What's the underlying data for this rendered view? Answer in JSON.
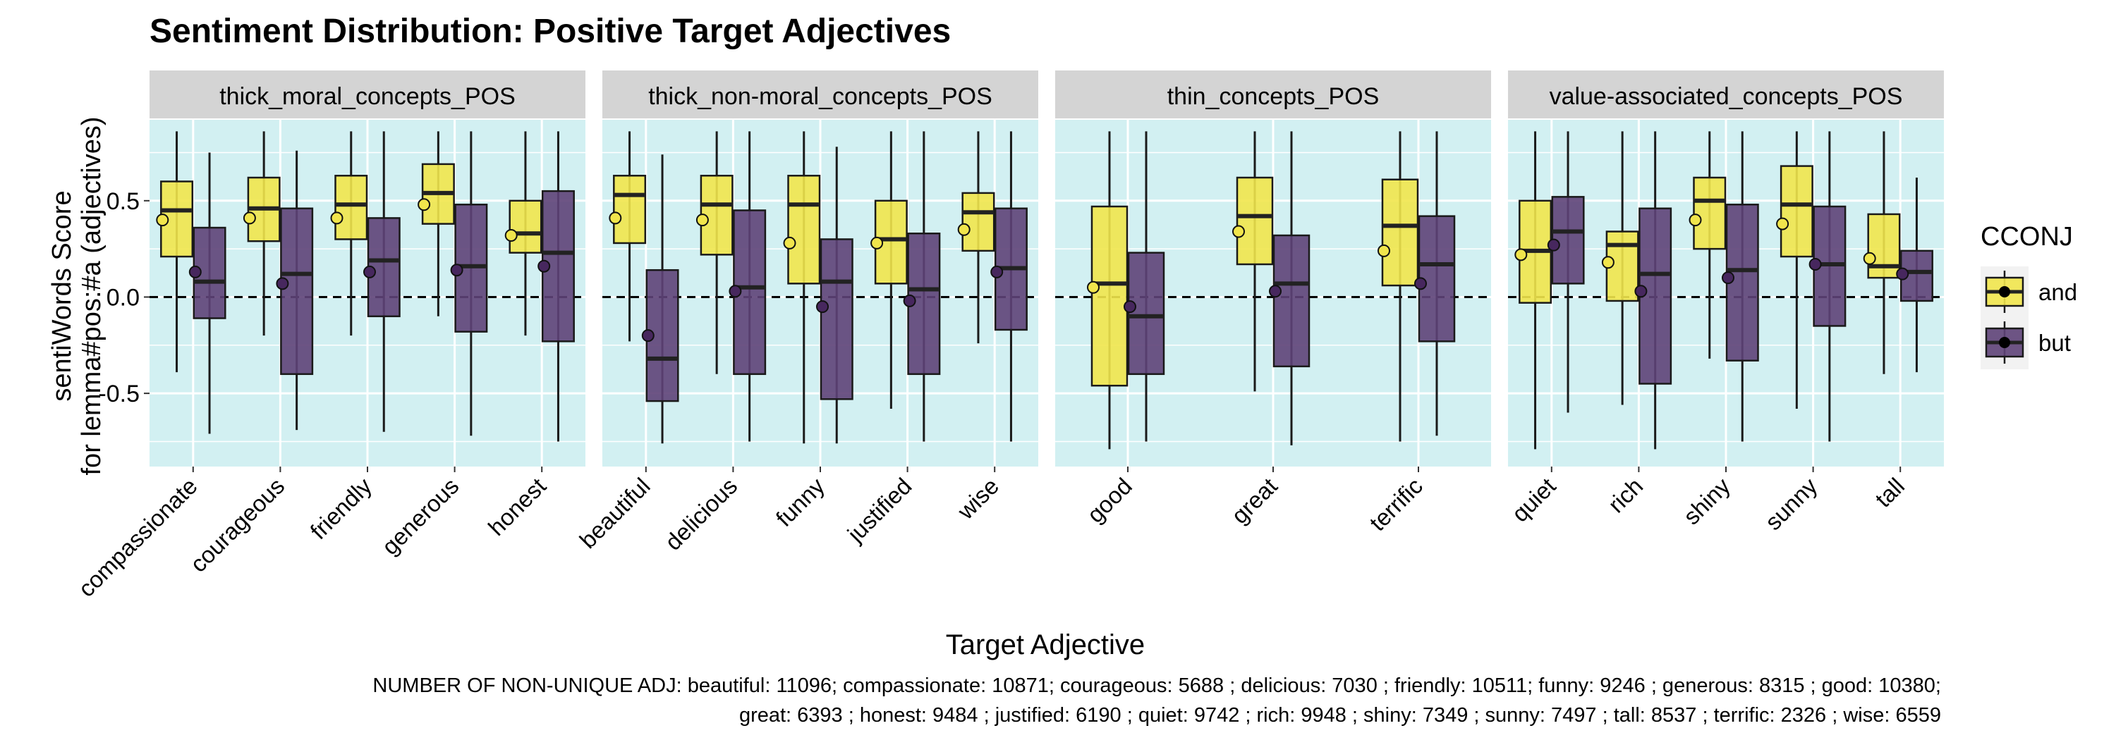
{
  "chart_data": {
    "type": "boxplot",
    "title": "Sentiment Distribution: Positive Target Adjectives",
    "xlabel": "Target Adjective",
    "ylabel_line1": "sentiWords Score",
    "ylabel_line2": "for lemma#pos:#a (adjectives)",
    "ylim": [
      -0.88,
      0.92
    ],
    "y_ticks": [
      -0.5,
      0.0,
      0.5
    ],
    "y_tick_labels": [
      "-0.5",
      "0.0",
      "0.5"
    ],
    "reference_line": 0,
    "legend": {
      "title": "CCONJ",
      "placement": "right",
      "entries": [
        {
          "name": "and",
          "color": "#f1e54c"
        },
        {
          "name": "but",
          "color": "#5e4378"
        }
      ]
    },
    "colors": {
      "panel_bg": "#d2f0f2",
      "strip_bg": "#d4d4d4",
      "and_fill": "#f1e54c",
      "but_fill": "#5e4378",
      "and_point": "#f1e54c",
      "but_point": "#47275e"
    },
    "panels": [
      {
        "strip": "thick_moral_concepts_POS",
        "categories": [
          {
            "label": "compassionate",
            "and": {
              "min": -0.39,
              "q1": 0.21,
              "median": 0.45,
              "q3": 0.6,
              "max": 0.86,
              "mean": 0.4
            },
            "but": {
              "min": -0.71,
              "q1": -0.11,
              "median": 0.08,
              "q3": 0.36,
              "max": 0.75,
              "mean": 0.13
            }
          },
          {
            "label": "courageous",
            "and": {
              "min": -0.2,
              "q1": 0.29,
              "median": 0.46,
              "q3": 0.62,
              "max": 0.86,
              "mean": 0.41
            },
            "but": {
              "min": -0.69,
              "q1": -0.4,
              "median": 0.12,
              "q3": 0.46,
              "max": 0.76,
              "mean": 0.07
            }
          },
          {
            "label": "friendly",
            "and": {
              "min": -0.2,
              "q1": 0.3,
              "median": 0.48,
              "q3": 0.63,
              "max": 0.86,
              "mean": 0.41
            },
            "but": {
              "min": -0.7,
              "q1": -0.1,
              "median": 0.19,
              "q3": 0.41,
              "max": 0.86,
              "mean": 0.13
            }
          },
          {
            "label": "generous",
            "and": {
              "min": -0.1,
              "q1": 0.38,
              "median": 0.54,
              "q3": 0.69,
              "max": 0.86,
              "mean": 0.48
            },
            "but": {
              "min": -0.72,
              "q1": -0.18,
              "median": 0.16,
              "q3": 0.48,
              "max": 0.86,
              "mean": 0.14
            }
          },
          {
            "label": "honest",
            "and": {
              "min": -0.2,
              "q1": 0.23,
              "median": 0.33,
              "q3": 0.5,
              "max": 0.86,
              "mean": 0.32
            },
            "but": {
              "min": -0.75,
              "q1": -0.23,
              "median": 0.23,
              "q3": 0.55,
              "max": 0.86,
              "mean": 0.16
            }
          }
        ]
      },
      {
        "strip": "thick_non-moral_concepts_POS",
        "categories": [
          {
            "label": "beautiful",
            "and": {
              "min": -0.23,
              "q1": 0.28,
              "median": 0.53,
              "q3": 0.63,
              "max": 0.86,
              "mean": 0.41
            },
            "but": {
              "min": -0.76,
              "q1": -0.54,
              "median": -0.32,
              "q3": 0.14,
              "max": 0.74,
              "mean": -0.2
            }
          },
          {
            "label": "delicious",
            "and": {
              "min": -0.4,
              "q1": 0.22,
              "median": 0.48,
              "q3": 0.63,
              "max": 0.86,
              "mean": 0.4
            },
            "but": {
              "min": -0.75,
              "q1": -0.4,
              "median": 0.05,
              "q3": 0.45,
              "max": 0.86,
              "mean": 0.03
            }
          },
          {
            "label": "funny",
            "and": {
              "min": -0.76,
              "q1": 0.07,
              "median": 0.48,
              "q3": 0.63,
              "max": 0.86,
              "mean": 0.28
            },
            "but": {
              "min": -0.76,
              "q1": -0.53,
              "median": 0.08,
              "q3": 0.3,
              "max": 0.78,
              "mean": -0.05
            }
          },
          {
            "label": "justified",
            "and": {
              "min": -0.58,
              "q1": 0.07,
              "median": 0.3,
              "q3": 0.5,
              "max": 0.86,
              "mean": 0.28
            },
            "but": {
              "min": -0.75,
              "q1": -0.4,
              "median": 0.04,
              "q3": 0.33,
              "max": 0.86,
              "mean": -0.02
            }
          },
          {
            "label": "wise",
            "and": {
              "min": -0.24,
              "q1": 0.24,
              "median": 0.44,
              "q3": 0.54,
              "max": 0.86,
              "mean": 0.35
            },
            "but": {
              "min": -0.75,
              "q1": -0.17,
              "median": 0.15,
              "q3": 0.46,
              "max": 0.86,
              "mean": 0.13
            }
          }
        ]
      },
      {
        "strip": "thin_concepts_POS",
        "categories": [
          {
            "label": "good",
            "and": {
              "min": -0.79,
              "q1": -0.46,
              "median": 0.07,
              "q3": 0.47,
              "max": 0.86,
              "mean": 0.05
            },
            "but": {
              "min": -0.75,
              "q1": -0.4,
              "median": -0.1,
              "q3": 0.23,
              "max": 0.86,
              "mean": -0.05
            }
          },
          {
            "label": "great",
            "and": {
              "min": -0.49,
              "q1": 0.17,
              "median": 0.42,
              "q3": 0.62,
              "max": 0.86,
              "mean": 0.34
            },
            "but": {
              "min": -0.77,
              "q1": -0.36,
              "median": 0.07,
              "q3": 0.32,
              "max": 0.86,
              "mean": 0.03
            }
          },
          {
            "label": "terrific",
            "and": {
              "min": -0.75,
              "q1": 0.06,
              "median": 0.37,
              "q3": 0.61,
              "max": 0.86,
              "mean": 0.24
            },
            "but": {
              "min": -0.72,
              "q1": -0.23,
              "median": 0.17,
              "q3": 0.42,
              "max": 0.86,
              "mean": 0.07
            }
          }
        ]
      },
      {
        "strip": "value-associated_concepts_POS",
        "categories": [
          {
            "label": "quiet",
            "and": {
              "min": -0.79,
              "q1": -0.03,
              "median": 0.24,
              "q3": 0.5,
              "max": 0.86,
              "mean": 0.22
            },
            "but": {
              "min": -0.6,
              "q1": 0.07,
              "median": 0.34,
              "q3": 0.52,
              "max": 0.86,
              "mean": 0.27
            }
          },
          {
            "label": "rich",
            "and": {
              "min": -0.56,
              "q1": -0.02,
              "median": 0.27,
              "q3": 0.34,
              "max": 0.86,
              "mean": 0.18
            },
            "but": {
              "min": -0.79,
              "q1": -0.45,
              "median": 0.12,
              "q3": 0.46,
              "max": 0.86,
              "mean": 0.03
            }
          },
          {
            "label": "shiny",
            "and": {
              "min": -0.32,
              "q1": 0.25,
              "median": 0.5,
              "q3": 0.62,
              "max": 0.86,
              "mean": 0.4
            },
            "but": {
              "min": -0.75,
              "q1": -0.33,
              "median": 0.14,
              "q3": 0.48,
              "max": 0.86,
              "mean": 0.1
            }
          },
          {
            "label": "sunny",
            "and": {
              "min": -0.58,
              "q1": 0.21,
              "median": 0.48,
              "q3": 0.68,
              "max": 0.86,
              "mean": 0.38
            },
            "but": {
              "min": -0.75,
              "q1": -0.15,
              "median": 0.17,
              "q3": 0.47,
              "max": 0.86,
              "mean": 0.17
            }
          },
          {
            "label": "tall",
            "and": {
              "min": -0.4,
              "q1": 0.1,
              "median": 0.16,
              "q3": 0.43,
              "max": 0.86,
              "mean": 0.2
            },
            "but": {
              "min": -0.39,
              "q1": -0.02,
              "median": 0.13,
              "q3": 0.24,
              "max": 0.62,
              "mean": 0.12
            }
          }
        ]
      }
    ],
    "caption_line1": "NUMBER OF NON-UNIQUE ADJ: beautiful: 11096; compassionate: 10871; courageous: 5688 ; delicious: 7030 ; friendly: 10511; funny: 9246 ; generous: 8315 ; good: 10380;",
    "caption_line2": "great: 6393 ; honest: 9484 ; justified: 6190 ; quiet: 9742 ; rich: 9948 ; shiny: 7349 ; sunny: 7497 ; tall: 8537 ; terrific: 2326 ; wise: 6559"
  }
}
